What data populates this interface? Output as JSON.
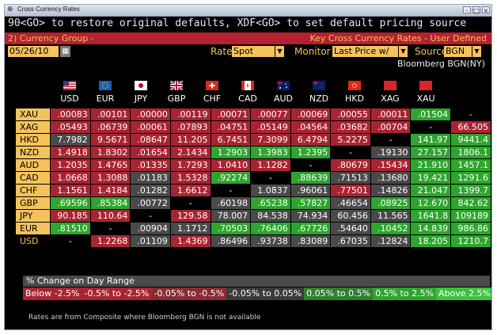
{
  "window": {
    "title": "Cross Currency Rates",
    "icon": "⊕"
  },
  "command_line": "90<GO> to restore original defaults, XDF<GO> to set default pricing source",
  "header": {
    "left": "2) Currency Group -",
    "right": "Key Cross Currency Rates - User Defined"
  },
  "controls": {
    "date": "05/26/10",
    "rate_label": "Rate",
    "rate_value": "Spot",
    "monitor_label": "Monitor",
    "monitor_value": "Last Price w/",
    "source_label": "Source",
    "source_value": "BGN"
  },
  "source_note": "Bloomberg BGN(NY)",
  "columns": [
    "USD",
    "EUR",
    "JPY",
    "GBP",
    "CHF",
    "CAD",
    "AUD",
    "NZD",
    "HKD",
    "XAG",
    "XAU"
  ],
  "rows": [
    {
      "label": "XAU",
      "cells": [
        [
          ".00083",
          "red"
        ],
        [
          ".00101",
          "red"
        ],
        [
          ".00000",
          "red"
        ],
        [
          ".00119",
          "red"
        ],
        [
          ".00071",
          "red"
        ],
        [
          ".00077",
          "red"
        ],
        [
          ".00069",
          "red"
        ],
        [
          ".00055",
          "red"
        ],
        [
          ".00011",
          "red"
        ],
        [
          ".01504",
          "green"
        ],
        [
          "-",
          "blank"
        ]
      ]
    },
    {
      "label": "XAG",
      "cells": [
        [
          ".05493",
          "red"
        ],
        [
          ".06739",
          "red"
        ],
        [
          ".00061",
          "red"
        ],
        [
          ".07893",
          "red"
        ],
        [
          ".04751",
          "red"
        ],
        [
          ".05149",
          "red"
        ],
        [
          ".04564",
          "red"
        ],
        [
          ".03682",
          "red"
        ],
        [
          ".00704",
          "red"
        ],
        [
          "-",
          "blank"
        ],
        [
          "66.505",
          "red"
        ]
      ]
    },
    {
      "label": "HKD",
      "cells": [
        [
          "7.7982",
          "grey"
        ],
        [
          "9.5671",
          "red"
        ],
        [
          ".08647",
          "red"
        ],
        [
          "11.205",
          "red"
        ],
        [
          "6.7451",
          "red"
        ],
        [
          "7.3099",
          "red"
        ],
        [
          "6.4794",
          "red"
        ],
        [
          "5.2275",
          "red"
        ],
        [
          "-",
          "blank"
        ],
        [
          "141.97",
          "green"
        ],
        [
          "9441.4",
          "green"
        ]
      ]
    },
    {
      "label": "NZD",
      "cells": [
        [
          "1.4918",
          "red"
        ],
        [
          "1.8302",
          "red"
        ],
        [
          ".01654",
          "red"
        ],
        [
          "2.1434",
          "red"
        ],
        [
          "1.2903",
          "green"
        ],
        [
          "1.3983",
          "green"
        ],
        [
          "1.2395",
          "green"
        ],
        [
          "-",
          "blank"
        ],
        [
          ".19130",
          "grey"
        ],
        [
          "27.157",
          "green"
        ],
        [
          "1806.1",
          "green"
        ]
      ]
    },
    {
      "label": "AUD",
      "cells": [
        [
          "1.2035",
          "red"
        ],
        [
          "1.4765",
          "red"
        ],
        [
          ".01335",
          "red"
        ],
        [
          "1.7293",
          "red"
        ],
        [
          "1.0410",
          "red"
        ],
        [
          "1.1282",
          "red"
        ],
        [
          "-",
          "blank"
        ],
        [
          ".80679",
          "red"
        ],
        [
          ".15434",
          "red"
        ],
        [
          "21.910",
          "green"
        ],
        [
          "1457.1",
          "green"
        ]
      ]
    },
    {
      "label": "CAD",
      "cells": [
        [
          "1.0668",
          "red"
        ],
        [
          "1.3088",
          "red"
        ],
        [
          ".01183",
          "grey"
        ],
        [
          "1.5328",
          "red"
        ],
        [
          ".92274",
          "green"
        ],
        [
          "-",
          "blank"
        ],
        [
          ".88639",
          "green"
        ],
        [
          ".71513",
          "grey"
        ],
        [
          ".13680",
          "grey"
        ],
        [
          "19.421",
          "green"
        ],
        [
          "1291.6",
          "green"
        ]
      ]
    },
    {
      "label": "CHF",
      "cells": [
        [
          "1.1561",
          "red"
        ],
        [
          "1.4184",
          "red"
        ],
        [
          ".01282",
          "grey"
        ],
        [
          "1.6612",
          "red"
        ],
        [
          "-",
          "blank"
        ],
        [
          "1.0837",
          "grey"
        ],
        [
          ".96061",
          "grey"
        ],
        [
          ".77501",
          "red"
        ],
        [
          ".14826",
          "grey"
        ],
        [
          "21.047",
          "green"
        ],
        [
          "1399.7",
          "green"
        ]
      ]
    },
    {
      "label": "GBP",
      "cells": [
        [
          ".69596",
          "green"
        ],
        [
          ".85384",
          "green"
        ],
        [
          ".00772",
          "grey"
        ],
        [
          "-",
          "blank"
        ],
        [
          ".60198",
          "grey"
        ],
        [
          ".65238",
          "green"
        ],
        [
          ".57827",
          "green"
        ],
        [
          ".46654",
          "grey"
        ],
        [
          ".08925",
          "green"
        ],
        [
          "12.670",
          "green"
        ],
        [
          "842.62",
          "green"
        ]
      ]
    },
    {
      "label": "JPY",
      "cells": [
        [
          "90.185",
          "red"
        ],
        [
          "110.64",
          "red"
        ],
        [
          "-",
          "blank"
        ],
        [
          "129.58",
          "red"
        ],
        [
          "78.007",
          "grey"
        ],
        [
          "84.538",
          "grey"
        ],
        [
          "74.934",
          "grey"
        ],
        [
          "60.456",
          "grey"
        ],
        [
          "11.565",
          "grey"
        ],
        [
          "1641.8",
          "green"
        ],
        [
          "109189",
          "green"
        ]
      ]
    },
    {
      "label": "EUR",
      "cells": [
        [
          ".81510",
          "green"
        ],
        [
          "-",
          "blank"
        ],
        [
          ".00904",
          "grey"
        ],
        [
          "1.1712",
          "grey"
        ],
        [
          ".70503",
          "green"
        ],
        [
          ".76406",
          "green"
        ],
        [
          ".67726",
          "green"
        ],
        [
          ".54640",
          "grey"
        ],
        [
          ".10452",
          "green"
        ],
        [
          "14.839",
          "green"
        ],
        [
          "986.86",
          "green"
        ]
      ]
    },
    {
      "label": "USD",
      "cells": [
        [
          "-",
          "blank"
        ],
        [
          "1.2268",
          "red"
        ],
        [
          ".01109",
          "grey"
        ],
        [
          "1.4369",
          "red"
        ],
        [
          ".86496",
          "grey"
        ],
        [
          ".93738",
          "grey"
        ],
        [
          ".83089",
          "grey"
        ],
        [
          ".67035",
          "grey"
        ],
        [
          ".12824",
          "grey"
        ],
        [
          "18.205",
          "green"
        ],
        [
          "1210.7",
          "green"
        ]
      ]
    }
  ],
  "legend": {
    "title": "% Change on Day Range",
    "items": [
      {
        "text": "Below -2.5%",
        "color": "#a92432"
      },
      {
        "text": "-0.5% to -2.5%",
        "color": "#a92432"
      },
      {
        "text": "-0.05% to -0.5%",
        "color": "#8a2a33"
      },
      {
        "text": "-0.05% to 0.05%",
        "color": "#3a3a3a"
      },
      {
        "text": "0.05% to 0.5%",
        "color": "#2f7f2f"
      },
      {
        "text": "0.5% to 2.5%",
        "color": "#2ea52e"
      },
      {
        "text": "Above 2.5%",
        "color": "#3ec13e"
      }
    ]
  },
  "footnote": "Rates are from Composite where Bloomberg BGN is not available"
}
